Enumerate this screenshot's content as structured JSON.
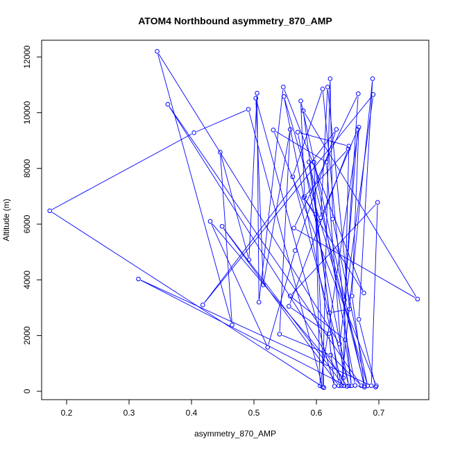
{
  "chart_data": {
    "type": "line",
    "title": "ATOM4 Northbound asymmetry_870_AMP",
    "xlabel": "asymmetry_870_AMP",
    "ylabel": "Altitude (m)",
    "xlim": [
      0.16,
      0.78
    ],
    "ylim": [
      -300,
      12600
    ],
    "xticks": [
      0.2,
      0.3,
      0.4,
      0.5,
      0.6,
      0.7
    ],
    "xtick_labels": [
      "0.2",
      "0.3",
      "0.4",
      "0.5",
      "0.6",
      "0.7"
    ],
    "yticks": [
      0,
      2000,
      4000,
      6000,
      8000,
      10000,
      12000
    ],
    "ytick_labels": [
      "0",
      "2000",
      "4000",
      "6000",
      "8000",
      "10000",
      "12000"
    ],
    "grid": false,
    "series": [
      {
        "color": "#0000ff",
        "marker": "open-circle",
        "points": [
          [
            0.695,
            150
          ],
          [
            0.668,
            2580
          ],
          [
            0.69,
            11220
          ],
          [
            0.64,
            200
          ],
          [
            0.548,
            10580
          ],
          [
            0.682,
            200
          ],
          [
            0.626,
            6180
          ],
          [
            0.622,
            11220
          ],
          [
            0.61,
            160
          ],
          [
            0.491,
            10120
          ],
          [
            0.404,
            9280
          ],
          [
            0.173,
            6480
          ],
          [
            0.612,
            130
          ],
          [
            0.596,
            8220
          ],
          [
            0.662,
            210
          ],
          [
            0.677,
            150
          ],
          [
            0.575,
            10420
          ],
          [
            0.581,
            7000
          ],
          [
            0.651,
            8700
          ],
          [
            0.556,
            3050
          ],
          [
            0.62,
            2070
          ],
          [
            0.629,
            180
          ],
          [
            0.503,
            10520
          ],
          [
            0.515,
            3820
          ],
          [
            0.558,
            9400
          ],
          [
            0.541,
            2050
          ],
          [
            0.623,
            1300
          ],
          [
            0.672,
            200
          ],
          [
            0.362,
            10300
          ],
          [
            0.649,
            180
          ],
          [
            0.315,
            4030
          ],
          [
            0.688,
            200
          ],
          [
            0.698,
            6780
          ],
          [
            0.558,
            3420
          ],
          [
            0.646,
            1850
          ],
          [
            0.656,
            200
          ],
          [
            0.61,
            10850
          ],
          [
            0.562,
            7700
          ],
          [
            0.652,
            200
          ],
          [
            0.57,
            9300
          ],
          [
            0.652,
            8800
          ],
          [
            0.643,
            480
          ],
          [
            0.43,
            6100
          ],
          [
            0.522,
            1580
          ],
          [
            0.566,
            5050
          ],
          [
            0.632,
            9400
          ],
          [
            0.418,
            3100
          ],
          [
            0.691,
            10650
          ],
          [
            0.637,
            1700
          ],
          [
            0.345,
            12200
          ],
          [
            0.465,
            2380
          ],
          [
            0.446,
            8580
          ],
          [
            0.492,
            4720
          ],
          [
            0.505,
            10700
          ],
          [
            0.508,
            3200
          ],
          [
            0.547,
            10920
          ],
          [
            0.676,
            3530
          ],
          [
            0.58,
            6950
          ],
          [
            0.599,
            6350
          ],
          [
            0.606,
            200
          ],
          [
            0.668,
            9480
          ],
          [
            0.657,
            3420
          ],
          [
            0.677,
            200
          ],
          [
            0.588,
            8230
          ],
          [
            0.621,
            2820
          ],
          [
            0.653,
            2950
          ],
          [
            0.618,
            10920
          ],
          [
            0.607,
            6230
          ],
          [
            0.666,
            9400
          ],
          [
            0.645,
            3280
          ],
          [
            0.667,
            10680
          ],
          [
            0.564,
            5860
          ],
          [
            0.762,
            3310
          ],
          [
            0.579,
            10070
          ],
          [
            0.636,
            200
          ],
          [
            0.449,
            5920
          ],
          [
            0.644,
            200
          ],
          [
            0.616,
            8230
          ],
          [
            0.531,
            9380
          ],
          [
            0.696,
            200
          ]
        ]
      }
    ]
  }
}
